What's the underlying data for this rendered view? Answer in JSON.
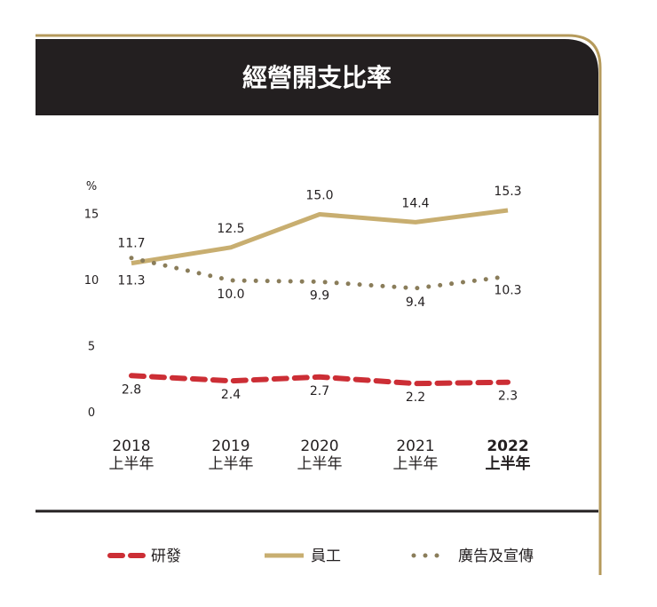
{
  "chart_data": {
    "type": "line",
    "title": "經營開支比率",
    "ylabel": "%",
    "ylim": [
      0,
      17
    ],
    "y_ticks": [
      0,
      5,
      10,
      15
    ],
    "categories": [
      {
        "year": "2018",
        "sub": "上半年",
        "bold": false
      },
      {
        "year": "2019",
        "sub": "上半年",
        "bold": false
      },
      {
        "year": "2020",
        "sub": "上半年",
        "bold": false
      },
      {
        "year": "2021",
        "sub": "上半年",
        "bold": false
      },
      {
        "year": "2022",
        "sub": "上半年",
        "bold": true
      }
    ],
    "series": [
      {
        "name": "研發",
        "style": "dashed",
        "color": "#cc2e35",
        "values": [
          2.8,
          2.4,
          2.7,
          2.2,
          2.3
        ]
      },
      {
        "name": "員工",
        "style": "solid",
        "color": "#c8ae70",
        "values": [
          11.3,
          12.5,
          15.0,
          14.4,
          15.3
        ]
      },
      {
        "name": "廣告及宣傳",
        "style": "dotted",
        "color": "#8a7d5a",
        "values": [
          11.7,
          10.0,
          9.9,
          9.4,
          10.3
        ]
      }
    ],
    "grid": false,
    "legend_position": "bottom"
  },
  "colors": {
    "header_bg": "#231f20",
    "header_text": "#ffffff",
    "border_gold": "#b59a5b",
    "separator": "#231f20"
  }
}
